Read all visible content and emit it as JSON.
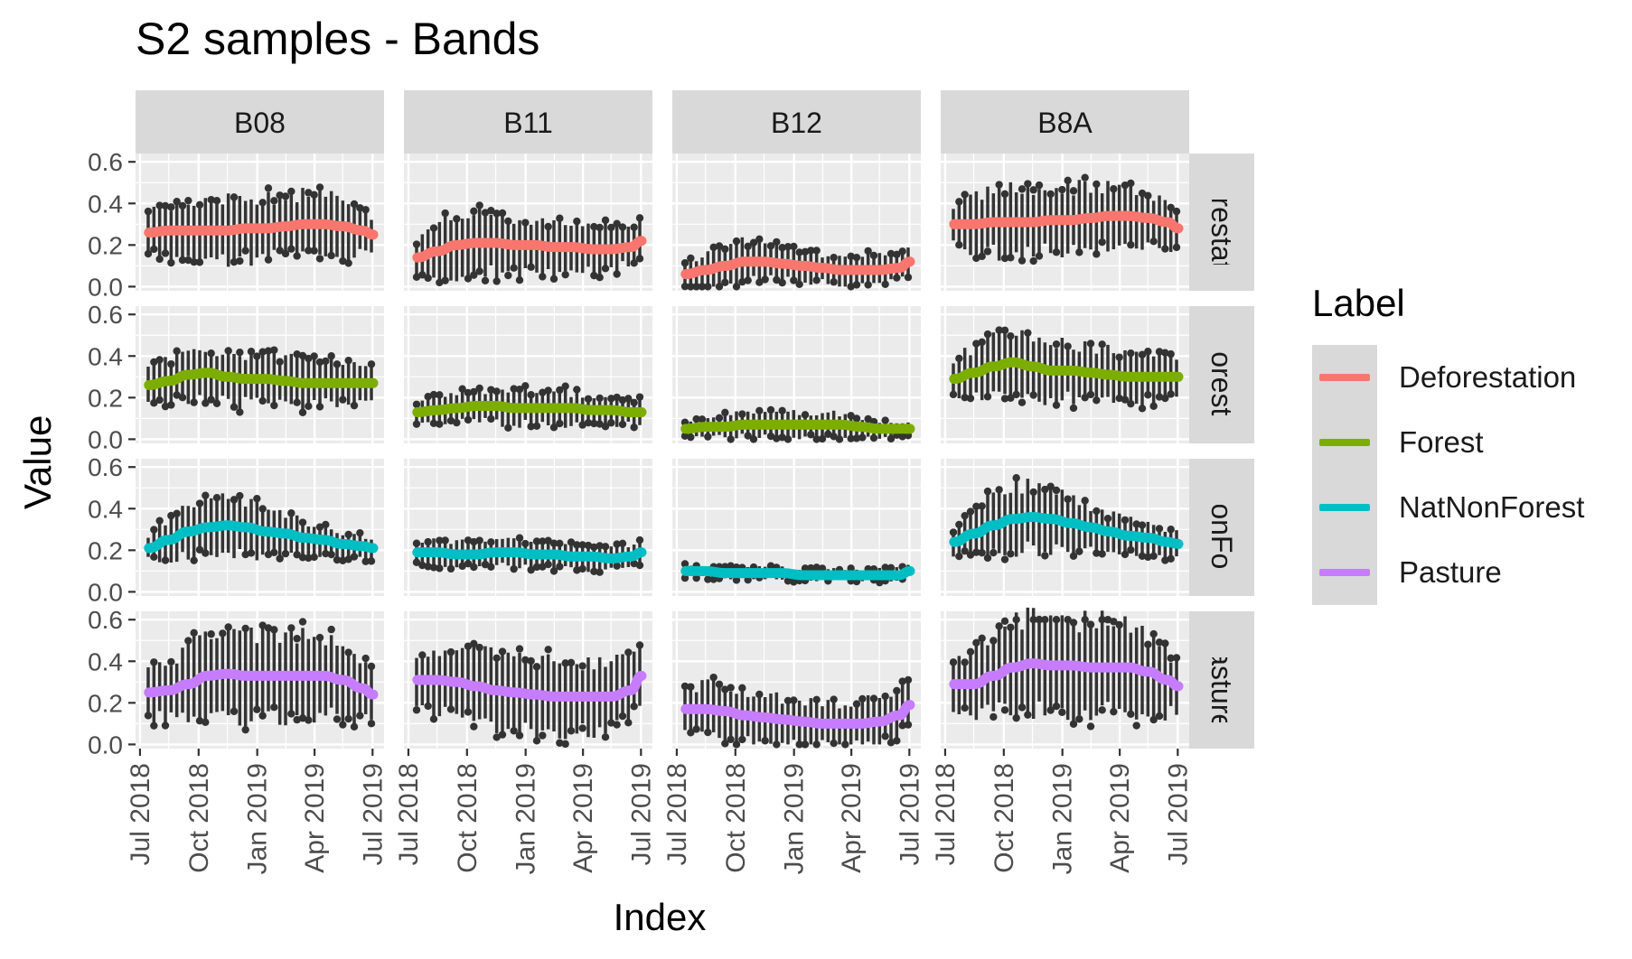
{
  "title": "S2 samples - Bands",
  "axes": {
    "xlabel": "Index",
    "ylabel": "Value"
  },
  "legend": {
    "title": "Label",
    "items": [
      {
        "name": "Deforestation",
        "color": "#F8766D"
      },
      {
        "name": "Forest",
        "color": "#7CAE00"
      },
      {
        "name": "NatNonForest",
        "color": "#00BFC4"
      },
      {
        "name": "Pasture",
        "color": "#C77CFF"
      }
    ]
  },
  "chart_data": {
    "type": "line",
    "description_type": "faceted time series with boxplot distributions and smoothed median line",
    "facet_columns": [
      "B08",
      "B11",
      "B12",
      "B8A"
    ],
    "facet_rows": [
      "Deforestation",
      "Forest",
      "NatNonForest",
      "Pasture"
    ],
    "facet_row_labels_shown": [
      "eforestatio",
      "Forest",
      "tNonFore",
      "Pasture"
    ],
    "x_ticks": [
      "Jul 2018",
      "Oct 2018",
      "Jan 2019",
      "Apr 2019",
      "Jul 2019"
    ],
    "xlim": [
      "2018-06-24",
      "2019-07-19"
    ],
    "y_ticks": [
      "0.0",
      "0.2",
      "0.4",
      "0.6"
    ],
    "ylim": [
      -0.02,
      0.64
    ],
    "grid": true,
    "legend_position": "right",
    "x": [
      "2018-07",
      "2018-08",
      "2018-09",
      "2018-10",
      "2018-11",
      "2018-12",
      "2019-01",
      "2019-02",
      "2019-03",
      "2019-04",
      "2019-05",
      "2019-06",
      "2019-07"
    ],
    "panels": [
      {
        "column": "B08",
        "row": "Deforestation",
        "values": [
          0.26,
          0.27,
          0.27,
          0.27,
          0.27,
          0.28,
          0.28,
          0.29,
          0.3,
          0.3,
          0.29,
          0.27,
          0.25
        ],
        "spread": [
          0.1,
          0.12,
          0.14,
          0.15,
          0.15,
          0.15,
          0.15,
          0.15,
          0.15,
          0.15,
          0.14,
          0.12,
          0.1
        ]
      },
      {
        "column": "B11",
        "row": "Deforestation",
        "values": [
          0.14,
          0.17,
          0.2,
          0.21,
          0.21,
          0.2,
          0.2,
          0.19,
          0.19,
          0.18,
          0.18,
          0.19,
          0.22
        ],
        "spread": [
          0.08,
          0.12,
          0.15,
          0.15,
          0.15,
          0.14,
          0.13,
          0.12,
          0.12,
          0.12,
          0.12,
          0.1,
          0.09
        ]
      },
      {
        "column": "B12",
        "row": "Deforestation",
        "values": [
          0.06,
          0.08,
          0.1,
          0.12,
          0.12,
          0.11,
          0.1,
          0.09,
          0.08,
          0.08,
          0.08,
          0.09,
          0.12
        ],
        "spread": [
          0.05,
          0.08,
          0.1,
          0.1,
          0.09,
          0.08,
          0.08,
          0.07,
          0.07,
          0.07,
          0.07,
          0.06,
          0.06
        ]
      },
      {
        "column": "B8A",
        "row": "Deforestation",
        "values": [
          0.3,
          0.3,
          0.31,
          0.31,
          0.31,
          0.32,
          0.32,
          0.33,
          0.34,
          0.34,
          0.33,
          0.31,
          0.28
        ],
        "spread": [
          0.1,
          0.13,
          0.15,
          0.16,
          0.16,
          0.16,
          0.16,
          0.16,
          0.15,
          0.15,
          0.14,
          0.12,
          0.1
        ]
      },
      {
        "column": "B08",
        "row": "Forest",
        "values": [
          0.26,
          0.28,
          0.31,
          0.32,
          0.3,
          0.29,
          0.29,
          0.28,
          0.27,
          0.27,
          0.27,
          0.27,
          0.27
        ],
        "spread": [
          0.09,
          0.1,
          0.12,
          0.13,
          0.12,
          0.12,
          0.12,
          0.12,
          0.12,
          0.11,
          0.1,
          0.09,
          0.09
        ]
      },
      {
        "column": "B11",
        "row": "Forest",
        "values": [
          0.13,
          0.14,
          0.15,
          0.16,
          0.16,
          0.15,
          0.15,
          0.15,
          0.15,
          0.14,
          0.14,
          0.13,
          0.13
        ],
        "spread": [
          0.05,
          0.06,
          0.07,
          0.08,
          0.08,
          0.08,
          0.08,
          0.08,
          0.08,
          0.07,
          0.07,
          0.06,
          0.06
        ]
      },
      {
        "column": "B12",
        "row": "Forest",
        "values": [
          0.05,
          0.06,
          0.06,
          0.07,
          0.07,
          0.07,
          0.07,
          0.07,
          0.07,
          0.06,
          0.05,
          0.05,
          0.05
        ],
        "spread": [
          0.03,
          0.04,
          0.05,
          0.06,
          0.06,
          0.06,
          0.06,
          0.06,
          0.06,
          0.05,
          0.04,
          0.04,
          0.03
        ]
      },
      {
        "column": "B8A",
        "row": "Forest",
        "values": [
          0.29,
          0.32,
          0.35,
          0.37,
          0.35,
          0.33,
          0.33,
          0.32,
          0.31,
          0.3,
          0.3,
          0.3,
          0.3
        ],
        "spread": [
          0.1,
          0.12,
          0.14,
          0.15,
          0.15,
          0.14,
          0.14,
          0.13,
          0.13,
          0.12,
          0.12,
          0.11,
          0.1
        ]
      },
      {
        "column": "B08",
        "row": "NatNonForest",
        "values": [
          0.21,
          0.25,
          0.29,
          0.31,
          0.32,
          0.31,
          0.29,
          0.28,
          0.26,
          0.25,
          0.23,
          0.22,
          0.21
        ],
        "spread": [
          0.05,
          0.1,
          0.13,
          0.14,
          0.14,
          0.13,
          0.12,
          0.1,
          0.09,
          0.08,
          0.07,
          0.06,
          0.05
        ]
      },
      {
        "column": "B11",
        "row": "NatNonForest",
        "values": [
          0.19,
          0.19,
          0.18,
          0.18,
          0.19,
          0.19,
          0.18,
          0.18,
          0.17,
          0.17,
          0.16,
          0.17,
          0.19
        ],
        "spread": [
          0.05,
          0.06,
          0.06,
          0.06,
          0.06,
          0.06,
          0.06,
          0.06,
          0.06,
          0.06,
          0.06,
          0.05,
          0.05
        ]
      },
      {
        "column": "B12",
        "row": "NatNonForest",
        "values": [
          0.1,
          0.1,
          0.09,
          0.09,
          0.09,
          0.09,
          0.08,
          0.08,
          0.08,
          0.08,
          0.08,
          0.08,
          0.1
        ],
        "spread": [
          0.03,
          0.03,
          0.03,
          0.03,
          0.03,
          0.03,
          0.03,
          0.03,
          0.03,
          0.03,
          0.03,
          0.03,
          0.03
        ]
      },
      {
        "column": "B8A",
        "row": "NatNonForest",
        "values": [
          0.24,
          0.28,
          0.32,
          0.35,
          0.36,
          0.35,
          0.33,
          0.31,
          0.29,
          0.27,
          0.26,
          0.24,
          0.23
        ],
        "spread": [
          0.06,
          0.11,
          0.14,
          0.16,
          0.16,
          0.15,
          0.13,
          0.12,
          0.1,
          0.09,
          0.08,
          0.07,
          0.06
        ]
      },
      {
        "column": "B08",
        "row": "Pasture",
        "values": [
          0.25,
          0.26,
          0.29,
          0.33,
          0.34,
          0.33,
          0.33,
          0.33,
          0.33,
          0.33,
          0.31,
          0.27,
          0.24
        ],
        "spread": [
          0.12,
          0.14,
          0.17,
          0.2,
          0.21,
          0.21,
          0.21,
          0.21,
          0.21,
          0.2,
          0.19,
          0.16,
          0.13
        ]
      },
      {
        "column": "B11",
        "row": "Pasture",
        "values": [
          0.31,
          0.31,
          0.3,
          0.28,
          0.26,
          0.25,
          0.24,
          0.23,
          0.23,
          0.23,
          0.23,
          0.26,
          0.33
        ],
        "spread": [
          0.14,
          0.16,
          0.17,
          0.18,
          0.18,
          0.17,
          0.17,
          0.17,
          0.17,
          0.17,
          0.17,
          0.16,
          0.15
        ]
      },
      {
        "column": "B12",
        "row": "Pasture",
        "values": [
          0.17,
          0.17,
          0.16,
          0.14,
          0.13,
          0.12,
          0.11,
          0.1,
          0.1,
          0.1,
          0.11,
          0.14,
          0.19
        ],
        "spread": [
          0.1,
          0.12,
          0.13,
          0.13,
          0.12,
          0.11,
          0.11,
          0.1,
          0.1,
          0.1,
          0.11,
          0.11,
          0.11
        ]
      },
      {
        "column": "B8A",
        "row": "Pasture",
        "values": [
          0.29,
          0.29,
          0.33,
          0.37,
          0.39,
          0.38,
          0.38,
          0.37,
          0.37,
          0.37,
          0.35,
          0.31,
          0.28
        ],
        "spread": [
          0.12,
          0.15,
          0.19,
          0.22,
          0.23,
          0.23,
          0.23,
          0.23,
          0.23,
          0.22,
          0.2,
          0.17,
          0.14
        ]
      }
    ]
  }
}
